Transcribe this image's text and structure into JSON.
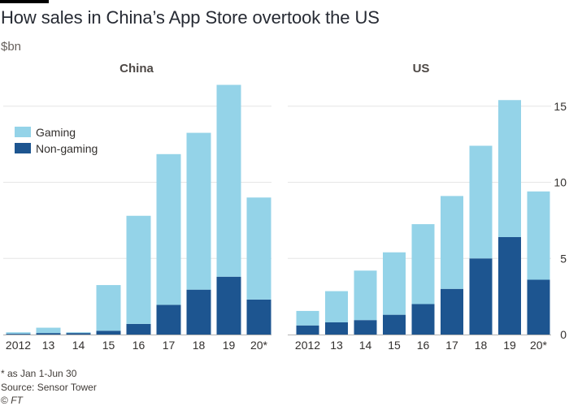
{
  "title": "How sales in China’s App Store overtook the US",
  "unit": "$bn",
  "footnote": "* as Jan 1-Jun 30",
  "source": "Source: Sensor Tower",
  "copyright": "© ",
  "copyright_brand": "FT",
  "colors": {
    "gaming": "#94d3e8",
    "non_gaming": "#1d5590",
    "grid": "#e6e6e6",
    "axis": "#b3b3b3"
  },
  "legend": [
    {
      "key": "gaming",
      "label": "Gaming"
    },
    {
      "key": "non_gaming",
      "label": "Non-gaming"
    }
  ],
  "chart_data": [
    {
      "type": "bar",
      "stacked": true,
      "title": "China",
      "categories": [
        "2012",
        "13",
        "14",
        "15",
        "16",
        "17",
        "18",
        "19",
        "20*"
      ],
      "series": [
        {
          "name": "Non-gaming",
          "key": "non_gaming",
          "values": [
            0.05,
            0.1,
            0.1,
            0.25,
            0.7,
            1.95,
            2.95,
            3.8,
            2.3
          ]
        },
        {
          "name": "Gaming",
          "key": "gaming",
          "values": [
            0.1,
            0.35,
            0.05,
            3.0,
            7.1,
            9.9,
            10.3,
            12.6,
            6.7
          ]
        }
      ],
      "ylim": [
        0,
        16.7
      ],
      "yticks": [
        0,
        5,
        10,
        15
      ],
      "grid": true,
      "legend_position": "upper-left"
    },
    {
      "type": "bar",
      "stacked": true,
      "title": "US",
      "categories": [
        "2012",
        "13",
        "14",
        "15",
        "16",
        "17",
        "18",
        "19",
        "20*"
      ],
      "series": [
        {
          "name": "Non-gaming",
          "key": "non_gaming",
          "values": [
            0.6,
            0.8,
            0.95,
            1.3,
            2.0,
            3.0,
            5.0,
            6.4,
            3.6
          ]
        },
        {
          "name": "Gaming",
          "key": "gaming",
          "values": [
            0.95,
            2.05,
            3.25,
            4.1,
            5.25,
            6.1,
            7.4,
            9.0,
            5.8
          ]
        }
      ],
      "ylim": [
        0,
        16.7
      ],
      "yticks": [
        0,
        5,
        10,
        15
      ],
      "ytick_labels": [
        "0",
        "5",
        "10",
        "15"
      ],
      "yaxis_side": "right",
      "grid": true
    }
  ]
}
